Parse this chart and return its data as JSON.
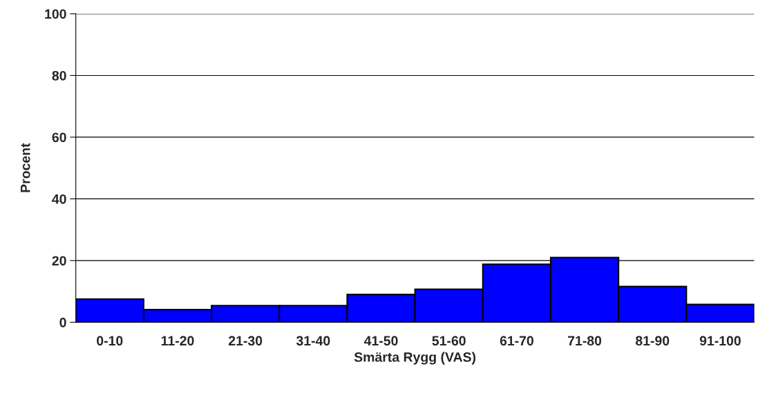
{
  "chart_data": {
    "type": "bar",
    "xlabel": "Smärta Rygg (VAS)",
    "ylabel": "Procent",
    "categories": [
      "0-10",
      "11-20",
      "21-30",
      "31-40",
      "41-50",
      "51-60",
      "61-70",
      "71-80",
      "81-90",
      "91-100"
    ],
    "values": [
      7.5,
      4.1,
      5.4,
      5.4,
      9.0,
      10.7,
      18.8,
      21.0,
      11.6,
      5.8
    ],
    "color": "#0000ff",
    "ylim": [
      0,
      100
    ],
    "yticks": [
      0,
      20,
      40,
      60,
      80,
      100
    ],
    "grid": "y"
  }
}
